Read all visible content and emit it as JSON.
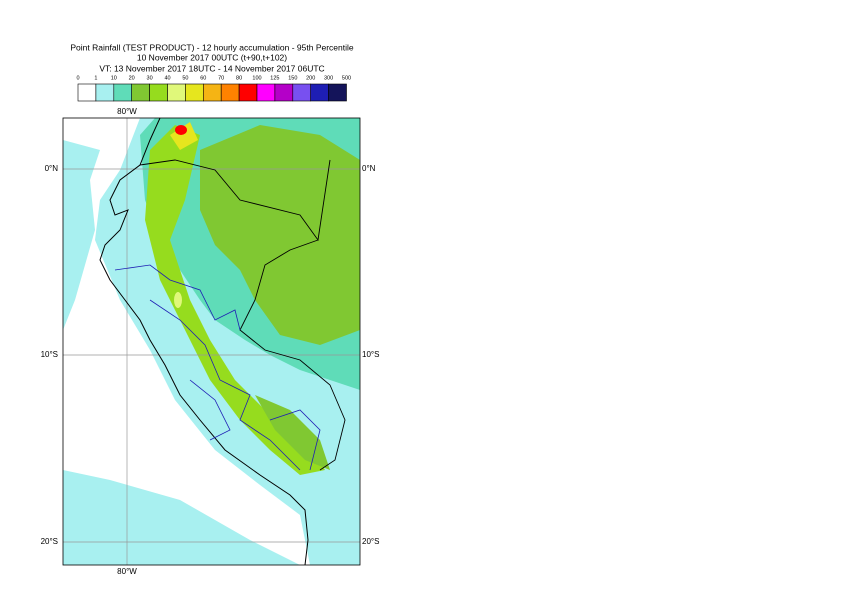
{
  "header": {
    "title": "Point Rainfall (TEST PRODUCT) - 12 hourly accumulation - 95th Percentile",
    "base": "10 November 2017 00UTC (t+90,t+102)",
    "validity": "VT: 13 November 2017 18UTC - 14 November 2017 06UTC"
  },
  "legend": {
    "labels": [
      "0",
      "1",
      "10",
      "20",
      "30",
      "40",
      "50",
      "60",
      "70",
      "80",
      "100",
      "125",
      "150",
      "200",
      "300",
      "500"
    ],
    "colors": [
      "#ffffff",
      "#a8f0f0",
      "#5fdcb8",
      "#80c832",
      "#96dc1e",
      "#e0f87a",
      "#e6e61e",
      "#f5b414",
      "#ff8200",
      "#ff0000",
      "#ff00ff",
      "#b400c8",
      "#7850f0",
      "#1e1eb4",
      "#14145a"
    ]
  },
  "map": {
    "lon_label": "80°W",
    "lat_labels": [
      "0°N",
      "10°S",
      "20°S"
    ]
  }
}
